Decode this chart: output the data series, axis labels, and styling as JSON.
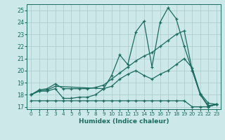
{
  "xlabel": "Humidex (Indice chaleur)",
  "bg_color": "#cce8e8",
  "grid_color": "#aacccc",
  "line_color": "#1a6b60",
  "xlim": [
    -0.5,
    23.5
  ],
  "ylim": [
    16.8,
    25.5
  ],
  "yticks": [
    17,
    18,
    19,
    20,
    21,
    22,
    23,
    24,
    25
  ],
  "xticks": [
    0,
    1,
    2,
    3,
    4,
    5,
    6,
    7,
    8,
    9,
    10,
    11,
    12,
    13,
    14,
    15,
    16,
    17,
    18,
    19,
    20,
    21,
    22,
    23
  ],
  "s1_x": [
    0,
    1,
    2,
    3,
    4,
    5,
    6,
    7,
    8,
    9,
    10,
    11,
    12,
    13,
    14,
    15,
    16,
    17,
    18,
    19,
    20,
    21,
    22,
    23
  ],
  "s1_y": [
    18.0,
    18.3,
    18.3,
    18.5,
    17.7,
    17.7,
    17.8,
    17.8,
    18.0,
    18.5,
    19.6,
    21.3,
    20.5,
    23.2,
    24.1,
    20.3,
    24.0,
    25.2,
    24.3,
    22.0,
    20.0,
    18.0,
    17.0,
    17.2
  ],
  "s2_x": [
    0,
    1,
    2,
    3,
    4,
    5,
    6,
    7,
    8,
    9,
    10,
    11,
    12,
    13,
    14,
    15,
    16,
    17,
    18,
    19,
    20,
    21,
    22,
    23
  ],
  "s2_y": [
    18.0,
    18.4,
    18.5,
    18.9,
    18.5,
    18.5,
    18.5,
    18.5,
    18.6,
    18.8,
    19.3,
    19.8,
    20.3,
    20.8,
    21.2,
    21.5,
    22.0,
    22.5,
    23.0,
    23.3,
    20.0,
    18.0,
    17.1,
    17.2
  ],
  "s3_x": [
    0,
    1,
    2,
    3,
    9,
    10,
    11,
    12,
    13,
    14,
    15,
    16,
    17,
    18,
    19,
    20,
    21,
    22,
    23
  ],
  "s3_y": [
    18.0,
    18.3,
    18.4,
    18.7,
    18.5,
    18.7,
    19.3,
    19.7,
    20.0,
    19.6,
    19.3,
    19.7,
    20.0,
    20.5,
    21.0,
    20.2,
    18.1,
    17.3,
    17.2
  ],
  "s4_x": [
    0,
    1,
    2,
    3,
    4,
    5,
    6,
    7,
    8,
    9,
    10,
    11,
    12,
    13,
    14,
    15,
    16,
    17,
    18,
    19,
    20,
    21,
    22,
    23
  ],
  "s4_y": [
    17.5,
    17.5,
    17.5,
    17.5,
    17.5,
    17.5,
    17.5,
    17.5,
    17.5,
    17.5,
    17.5,
    17.5,
    17.5,
    17.5,
    17.5,
    17.5,
    17.5,
    17.5,
    17.5,
    17.5,
    17.0,
    17.0,
    17.0,
    17.2
  ]
}
